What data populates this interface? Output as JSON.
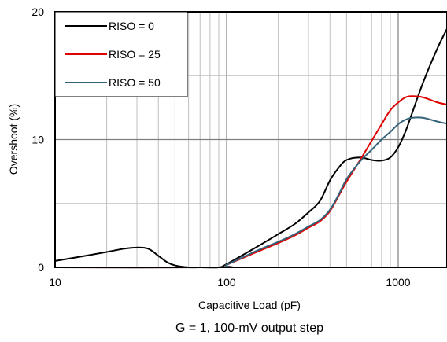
{
  "chart_data": {
    "type": "line",
    "x_scale": "log",
    "xlim": [
      10,
      2000
    ],
    "ylim": [
      0,
      20
    ],
    "xlabel": "Capacitive Load (pF)",
    "ylabel": "Overshoot (%)",
    "caption": "G = 1, 100-mV output step",
    "x_ticks": [
      {
        "value": 10,
        "label": "10"
      },
      {
        "value": 100,
        "label": "100"
      },
      {
        "value": 1000,
        "label": "1000"
      }
    ],
    "y_ticks": [
      {
        "value": 0,
        "label": "0"
      },
      {
        "value": 10,
        "label": "10"
      },
      {
        "value": 20,
        "label": "20"
      }
    ],
    "grid": true,
    "legend_position": "top-left",
    "series": [
      {
        "name": "RISO = 0",
        "color": "#000000",
        "points": [
          [
            10,
            0.5
          ],
          [
            15,
            0.9
          ],
          [
            20,
            1.2
          ],
          [
            25,
            1.45
          ],
          [
            30,
            1.55
          ],
          [
            35,
            1.45
          ],
          [
            40,
            0.9
          ],
          [
            45,
            0.4
          ],
          [
            50,
            0.15
          ],
          [
            60,
            0.0
          ],
          [
            70,
            0.0
          ],
          [
            90,
            0.0
          ],
          [
            100,
            0.25
          ],
          [
            150,
            1.6
          ],
          [
            200,
            2.6
          ],
          [
            250,
            3.4
          ],
          [
            300,
            4.3
          ],
          [
            350,
            5.2
          ],
          [
            400,
            6.8
          ],
          [
            450,
            7.8
          ],
          [
            500,
            8.4
          ],
          [
            600,
            8.6
          ],
          [
            700,
            8.4
          ],
          [
            800,
            8.35
          ],
          [
            900,
            8.6
          ],
          [
            1000,
            9.4
          ],
          [
            1100,
            10.6
          ],
          [
            1200,
            12.0
          ],
          [
            1400,
            14.5
          ],
          [
            1700,
            17.2
          ],
          [
            2000,
            19.1
          ]
        ]
      },
      {
        "name": "RISO = 25",
        "color": "#e00000",
        "points": [
          [
            10,
            0.0
          ],
          [
            90,
            0.0
          ],
          [
            100,
            0.2
          ],
          [
            150,
            1.2
          ],
          [
            200,
            1.9
          ],
          [
            250,
            2.5
          ],
          [
            300,
            3.1
          ],
          [
            350,
            3.6
          ],
          [
            400,
            4.4
          ],
          [
            450,
            5.6
          ],
          [
            500,
            6.7
          ],
          [
            600,
            8.4
          ],
          [
            700,
            9.9
          ],
          [
            800,
            11.2
          ],
          [
            900,
            12.3
          ],
          [
            1000,
            12.9
          ],
          [
            1100,
            13.3
          ],
          [
            1200,
            13.4
          ],
          [
            1400,
            13.3
          ],
          [
            1700,
            12.9
          ],
          [
            2000,
            12.7
          ]
        ]
      },
      {
        "name": "RISO = 50",
        "color": "#35637a",
        "points": [
          [
            10,
            0.0
          ],
          [
            90,
            0.0
          ],
          [
            100,
            0.2
          ],
          [
            150,
            1.3
          ],
          [
            200,
            2.0
          ],
          [
            250,
            2.6
          ],
          [
            300,
            3.2
          ],
          [
            350,
            3.7
          ],
          [
            400,
            4.5
          ],
          [
            450,
            5.7
          ],
          [
            500,
            6.9
          ],
          [
            600,
            8.3
          ],
          [
            700,
            9.2
          ],
          [
            800,
            10.0
          ],
          [
            900,
            10.6
          ],
          [
            1000,
            11.2
          ],
          [
            1100,
            11.55
          ],
          [
            1200,
            11.7
          ],
          [
            1400,
            11.7
          ],
          [
            1700,
            11.4
          ],
          [
            2000,
            11.2
          ]
        ]
      }
    ]
  }
}
